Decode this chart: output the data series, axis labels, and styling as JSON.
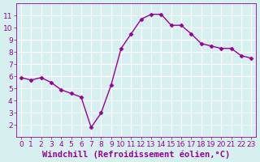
{
  "x": [
    0,
    1,
    2,
    3,
    4,
    5,
    6,
    7,
    8,
    9,
    10,
    11,
    12,
    13,
    14,
    15,
    16,
    17,
    18,
    19,
    20,
    21,
    22,
    23
  ],
  "y": [
    5.9,
    5.7,
    5.9,
    5.5,
    4.9,
    4.6,
    4.3,
    1.8,
    3.0,
    5.3,
    8.3,
    9.5,
    10.7,
    11.1,
    11.1,
    10.2,
    10.2,
    9.5,
    8.7,
    8.5,
    8.3,
    8.3,
    7.7,
    7.5
  ],
  "line_color": "#990099",
  "marker": "D",
  "markersize": 2.5,
  "linewidth": 1.0,
  "bg_color": "#d6f0f0",
  "grid_color": "#ffffff",
  "xlabel": "Windchill (Refroidissement éolien,°C)",
  "xlabel_color": "#990099",
  "xlabel_fontsize": 7.5,
  "tick_color": "#990099",
  "tick_fontsize": 6.5,
  "xlim": [
    -0.5,
    23.5
  ],
  "ylim": [
    1.0,
    12.0
  ],
  "yticks": [
    2,
    3,
    4,
    5,
    6,
    7,
    8,
    9,
    10,
    11
  ],
  "xticks": [
    0,
    1,
    2,
    3,
    4,
    5,
    6,
    7,
    8,
    9,
    10,
    11,
    12,
    13,
    14,
    15,
    16,
    17,
    18,
    19,
    20,
    21,
    22,
    23
  ]
}
